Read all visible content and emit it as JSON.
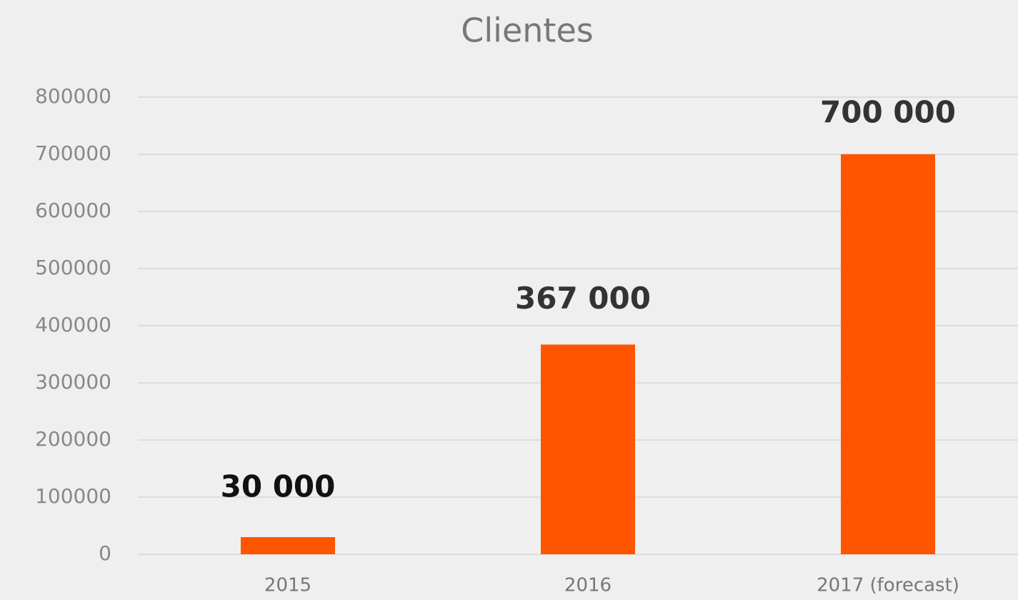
{
  "chart_data": {
    "type": "bar",
    "title": "Clientes",
    "categories": [
      "2015",
      "2016",
      "2017 (forecast)"
    ],
    "values": [
      30000,
      367000,
      700000
    ],
    "value_labels": [
      "30 000",
      "367 000",
      "700 000"
    ],
    "color": "#ff5500",
    "ylim": [
      0,
      800000
    ],
    "yticks": [
      0,
      100000,
      200000,
      300000,
      400000,
      500000,
      600000,
      700000,
      800000
    ],
    "grid": true
  }
}
